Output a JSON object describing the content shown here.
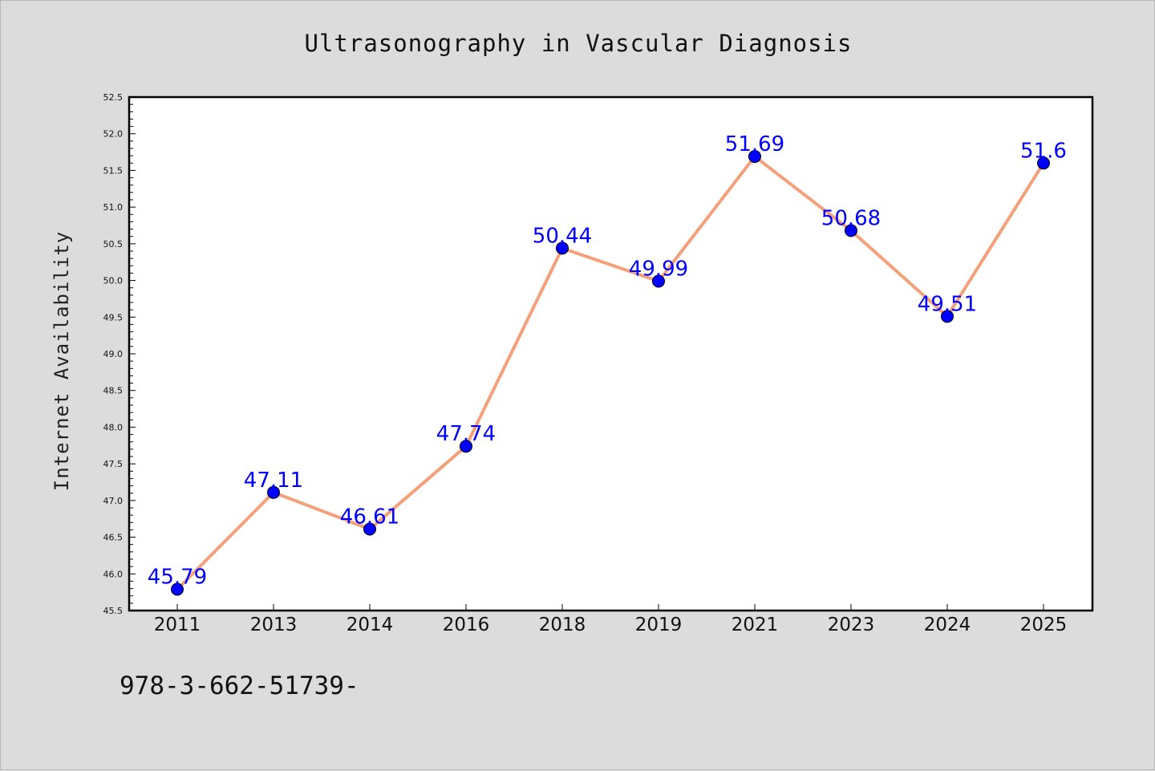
{
  "chart_data": {
    "type": "line",
    "title": "Ultrasonography in Vascular Diagnosis",
    "xlabel": "",
    "ylabel": "Internet Availability",
    "categories": [
      "2011",
      "2013",
      "2014",
      "2016",
      "2018",
      "2019",
      "2021",
      "2023",
      "2024",
      "2025"
    ],
    "values": [
      45.79,
      47.11,
      46.61,
      47.74,
      50.44,
      49.99,
      51.69,
      50.68,
      49.51,
      51.6
    ],
    "data_labels": [
      "45.79",
      "47.11",
      "46.61",
      "47.74",
      "50.44",
      "49.99",
      "51.69",
      "50.68",
      "49.51",
      "51.6"
    ],
    "ylim": [
      45.5,
      52.5
    ],
    "yticks": [
      "45.5",
      "46.0",
      "46.5",
      "47.0",
      "47.5",
      "48.0",
      "48.5",
      "49.0",
      "49.5",
      "50.0",
      "50.5",
      "51.0",
      "51.5",
      "52.0",
      "52.5"
    ],
    "grid": false,
    "legend": "none",
    "line_color": "#f4a07a",
    "marker_color": "#0000ff",
    "label_color": "#0000ff"
  },
  "footer": {
    "text": "978-3-662-51739-"
  }
}
